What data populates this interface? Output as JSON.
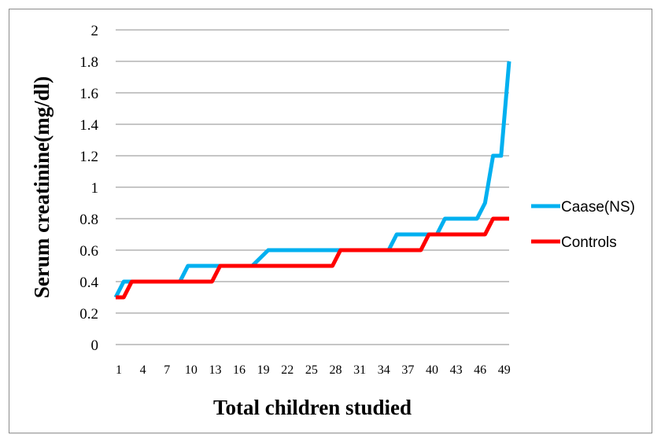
{
  "chart_data": {
    "type": "line",
    "title": "",
    "xlabel": "Total children studied",
    "ylabel": "Serum creatinine(mg/dl)",
    "ylim": [
      0,
      2
    ],
    "yticks": [
      "0",
      "0.2",
      "0.4",
      "0.6",
      "0.8",
      "1",
      "1.2",
      "1.4",
      "1.6",
      "1.8",
      "2"
    ],
    "xlim": [
      1,
      50
    ],
    "xticks": [
      "1",
      "4",
      "7",
      "10",
      "13",
      "16",
      "19",
      "22",
      "25",
      "28",
      "31",
      "34",
      "37",
      "40",
      "43",
      "46",
      "49"
    ],
    "grid": "horizontal",
    "legend": "right",
    "x": [
      1,
      2,
      3,
      4,
      5,
      6,
      7,
      8,
      9,
      10,
      11,
      12,
      13,
      14,
      15,
      16,
      17,
      18,
      19,
      20,
      21,
      22,
      23,
      24,
      25,
      26,
      27,
      28,
      29,
      30,
      31,
      32,
      33,
      34,
      35,
      36,
      37,
      38,
      39,
      40,
      41,
      42,
      43,
      44,
      45,
      46,
      47,
      48,
      49,
      50
    ],
    "series": [
      {
        "name": "Caase(NS)",
        "color": "#00b0f0",
        "values": [
          0.3,
          0.4,
          0.4,
          0.4,
          0.4,
          0.4,
          0.4,
          0.4,
          0.4,
          0.5,
          0.5,
          0.5,
          0.5,
          0.5,
          0.5,
          0.5,
          0.5,
          0.5,
          0.55,
          0.6,
          0.6,
          0.6,
          0.6,
          0.6,
          0.6,
          0.6,
          0.6,
          0.6,
          0.6,
          0.6,
          0.6,
          0.6,
          0.6,
          0.6,
          0.6,
          0.7,
          0.7,
          0.7,
          0.7,
          0.7,
          0.7,
          0.8,
          0.8,
          0.8,
          0.8,
          0.8,
          0.9,
          1.2,
          1.2,
          1.8
        ]
      },
      {
        "name": "Controls",
        "color": "#ff0000",
        "values": [
          0.3,
          0.3,
          0.4,
          0.4,
          0.4,
          0.4,
          0.4,
          0.4,
          0.4,
          0.4,
          0.4,
          0.4,
          0.4,
          0.5,
          0.5,
          0.5,
          0.5,
          0.5,
          0.5,
          0.5,
          0.5,
          0.5,
          0.5,
          0.5,
          0.5,
          0.5,
          0.5,
          0.5,
          0.6,
          0.6,
          0.6,
          0.6,
          0.6,
          0.6,
          0.6,
          0.6,
          0.6,
          0.6,
          0.6,
          0.7,
          0.7,
          0.7,
          0.7,
          0.7,
          0.7,
          0.7,
          0.7,
          0.8,
          0.8,
          0.8
        ]
      }
    ]
  }
}
